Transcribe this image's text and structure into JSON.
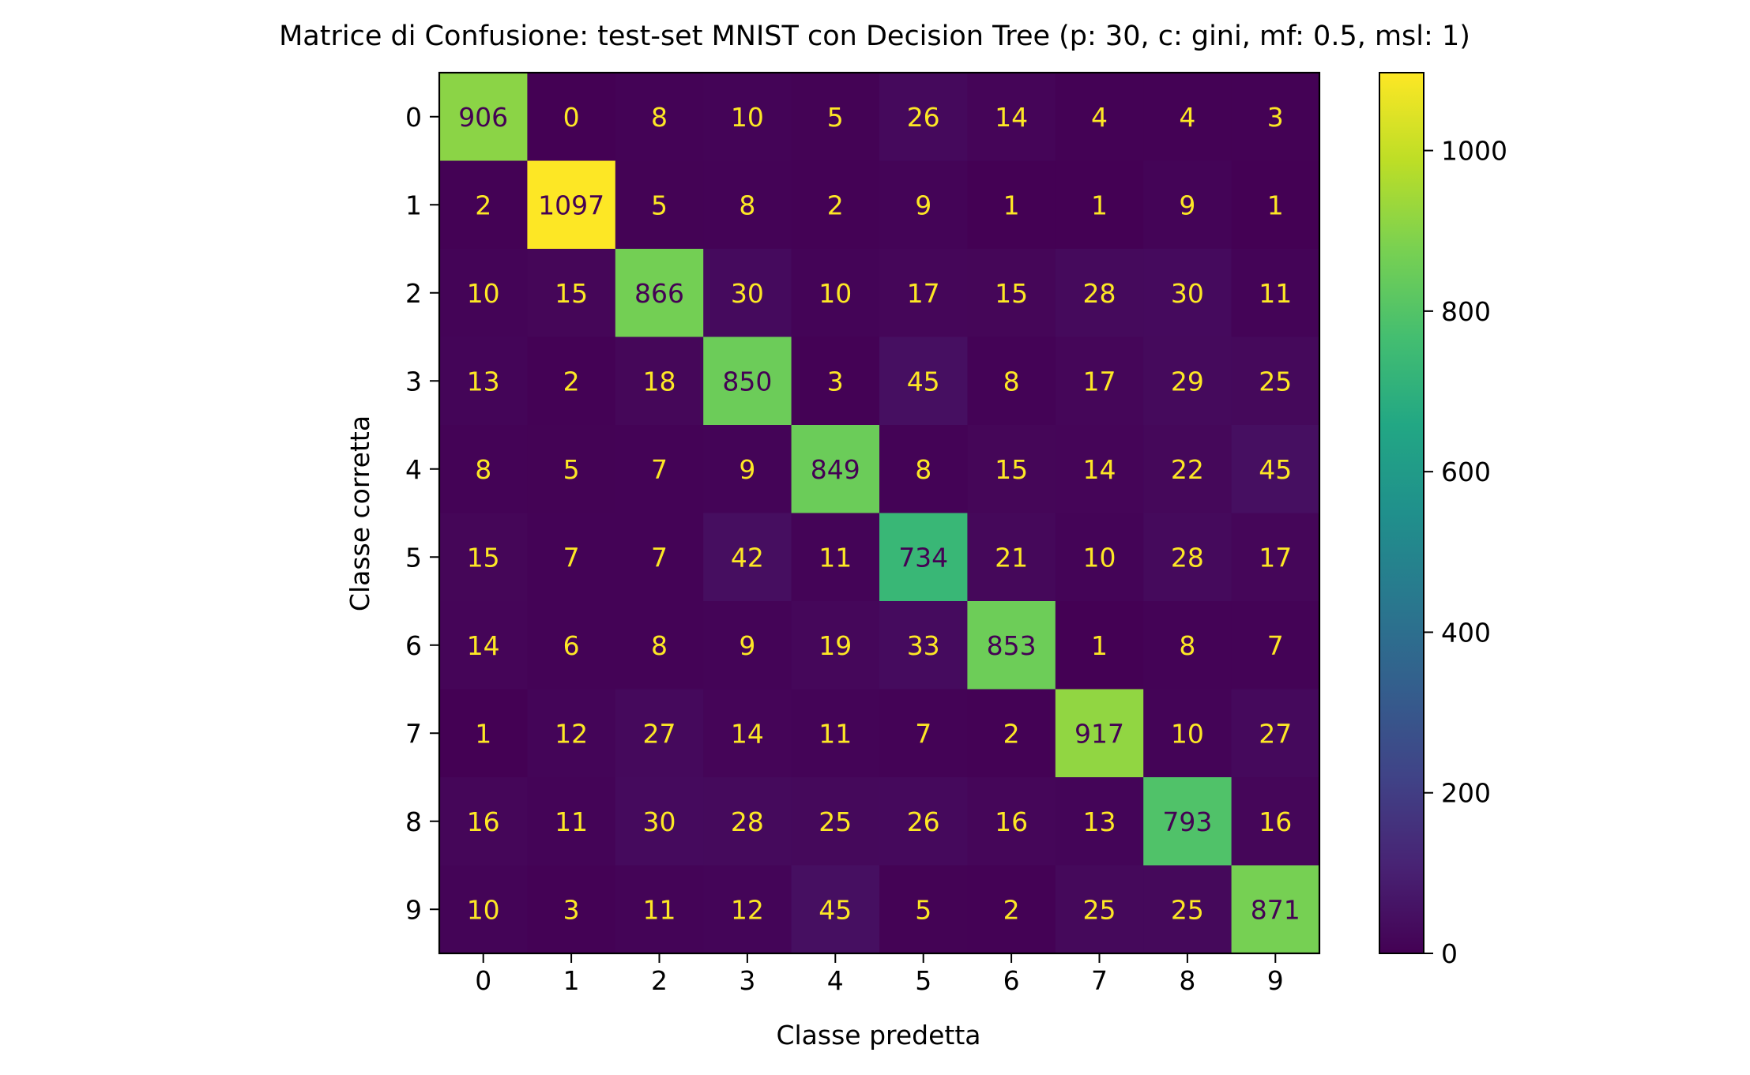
{
  "chart_data": {
    "type": "heatmap",
    "title": "Matrice di Confusione: test-set MNIST con Decision Tree (p: 30, c: gini, mf: 0.5, msl: 1)",
    "xlabel": "Classe predetta",
    "ylabel": "Classe corretta",
    "x_categories": [
      "0",
      "1",
      "2",
      "3",
      "4",
      "5",
      "6",
      "7",
      "8",
      "9"
    ],
    "y_categories": [
      "0",
      "1",
      "2",
      "3",
      "4",
      "5",
      "6",
      "7",
      "8",
      "9"
    ],
    "values": [
      [
        906,
        0,
        8,
        10,
        5,
        26,
        14,
        4,
        4,
        3
      ],
      [
        2,
        1097,
        5,
        8,
        2,
        9,
        1,
        1,
        9,
        1
      ],
      [
        10,
        15,
        866,
        30,
        10,
        17,
        15,
        28,
        30,
        11
      ],
      [
        13,
        2,
        18,
        850,
        3,
        45,
        8,
        17,
        29,
        25
      ],
      [
        8,
        5,
        7,
        9,
        849,
        8,
        15,
        14,
        22,
        45
      ],
      [
        15,
        7,
        7,
        42,
        11,
        734,
        21,
        10,
        28,
        17
      ],
      [
        14,
        6,
        8,
        9,
        19,
        33,
        853,
        1,
        8,
        7
      ],
      [
        1,
        12,
        27,
        14,
        11,
        7,
        2,
        917,
        10,
        27
      ],
      [
        16,
        11,
        30,
        28,
        25,
        26,
        16,
        13,
        793,
        16
      ],
      [
        10,
        3,
        11,
        12,
        45,
        5,
        2,
        25,
        25,
        871
      ]
    ],
    "colormap": "viridis",
    "color_range": [
      0,
      1097
    ],
    "colorbar_ticks": [
      "0",
      "200",
      "400",
      "600",
      "800",
      "1000"
    ],
    "colorbar_tick_values": [
      0,
      200,
      400,
      600,
      800,
      1000
    ],
    "grid": false,
    "legend": "colorbar-right",
    "annotation_colors": {
      "dark_cell_text": "#fde725",
      "light_cell_text": "#440154"
    }
  }
}
